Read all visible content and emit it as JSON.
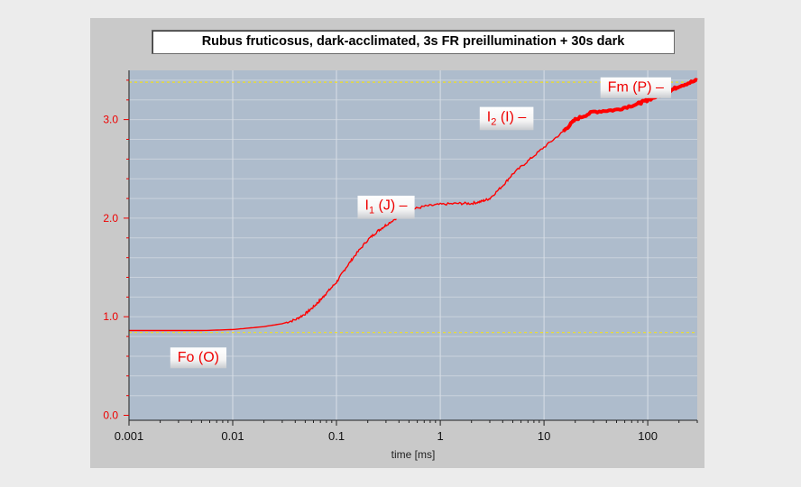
{
  "chart_data": {
    "type": "line",
    "title": "Rubus fruticosus, dark-acclimated, 3s FR preillumination + 30s dark",
    "xlabel": "time [ms]",
    "ylabel": "",
    "x_scale": "log",
    "xlim": [
      0.001,
      300
    ],
    "ylim": [
      -0.05,
      3.5
    ],
    "x_ticks": [
      {
        "value": 0.001,
        "label": "0.001"
      },
      {
        "value": 0.01,
        "label": "0.01"
      },
      {
        "value": 0.1,
        "label": "0.1"
      },
      {
        "value": 1,
        "label": "1"
      },
      {
        "value": 10,
        "label": "10"
      },
      {
        "value": 100,
        "label": "100"
      }
    ],
    "y_ticks": [
      {
        "value": 0.0,
        "label": "0.0"
      },
      {
        "value": 1.0,
        "label": "1.0"
      },
      {
        "value": 2.0,
        "label": "2.0"
      },
      {
        "value": 3.0,
        "label": "3.0"
      }
    ],
    "grid": true,
    "reference_lines": [
      {
        "name": "Fo",
        "y": 0.84,
        "color": "#f0e020"
      },
      {
        "name": "Fm",
        "y": 3.38,
        "color": "#f0e020"
      }
    ],
    "series": [
      {
        "color": "#ff0000",
        "x": [
          0.001,
          0.002,
          0.005,
          0.01,
          0.02,
          0.03,
          0.04,
          0.05,
          0.06,
          0.07,
          0.08,
          0.1,
          0.12,
          0.15,
          0.2,
          0.25,
          0.3,
          0.4,
          0.5,
          0.7,
          1,
          1.5,
          2,
          2.5,
          3,
          4,
          5,
          7,
          10,
          15,
          20,
          30,
          50,
          80,
          100,
          150,
          200,
          300
        ],
        "y": [
          0.86,
          0.86,
          0.86,
          0.87,
          0.9,
          0.93,
          0.97,
          1.03,
          1.1,
          1.17,
          1.24,
          1.35,
          1.48,
          1.62,
          1.78,
          1.87,
          1.93,
          2.02,
          2.08,
          2.12,
          2.14,
          2.15,
          2.15,
          2.17,
          2.2,
          2.33,
          2.45,
          2.58,
          2.72,
          2.87,
          3.0,
          3.08,
          3.1,
          3.16,
          3.2,
          3.27,
          3.34,
          3.4
        ]
      }
    ],
    "annotations": [
      {
        "text": "Fo (O)",
        "x": 0.0025,
        "y": 0.59
      },
      {
        "text": "I",
        "subscript": "1",
        "suffix": " (J)  –",
        "x": 0.16,
        "y": 2.13
      },
      {
        "text": "I",
        "subscript": "2",
        "suffix": " (I)  –",
        "x": 2.4,
        "y": 3.03
      },
      {
        "text": "Fm (P)  –",
        "x": 35,
        "y": 3.33
      }
    ]
  }
}
